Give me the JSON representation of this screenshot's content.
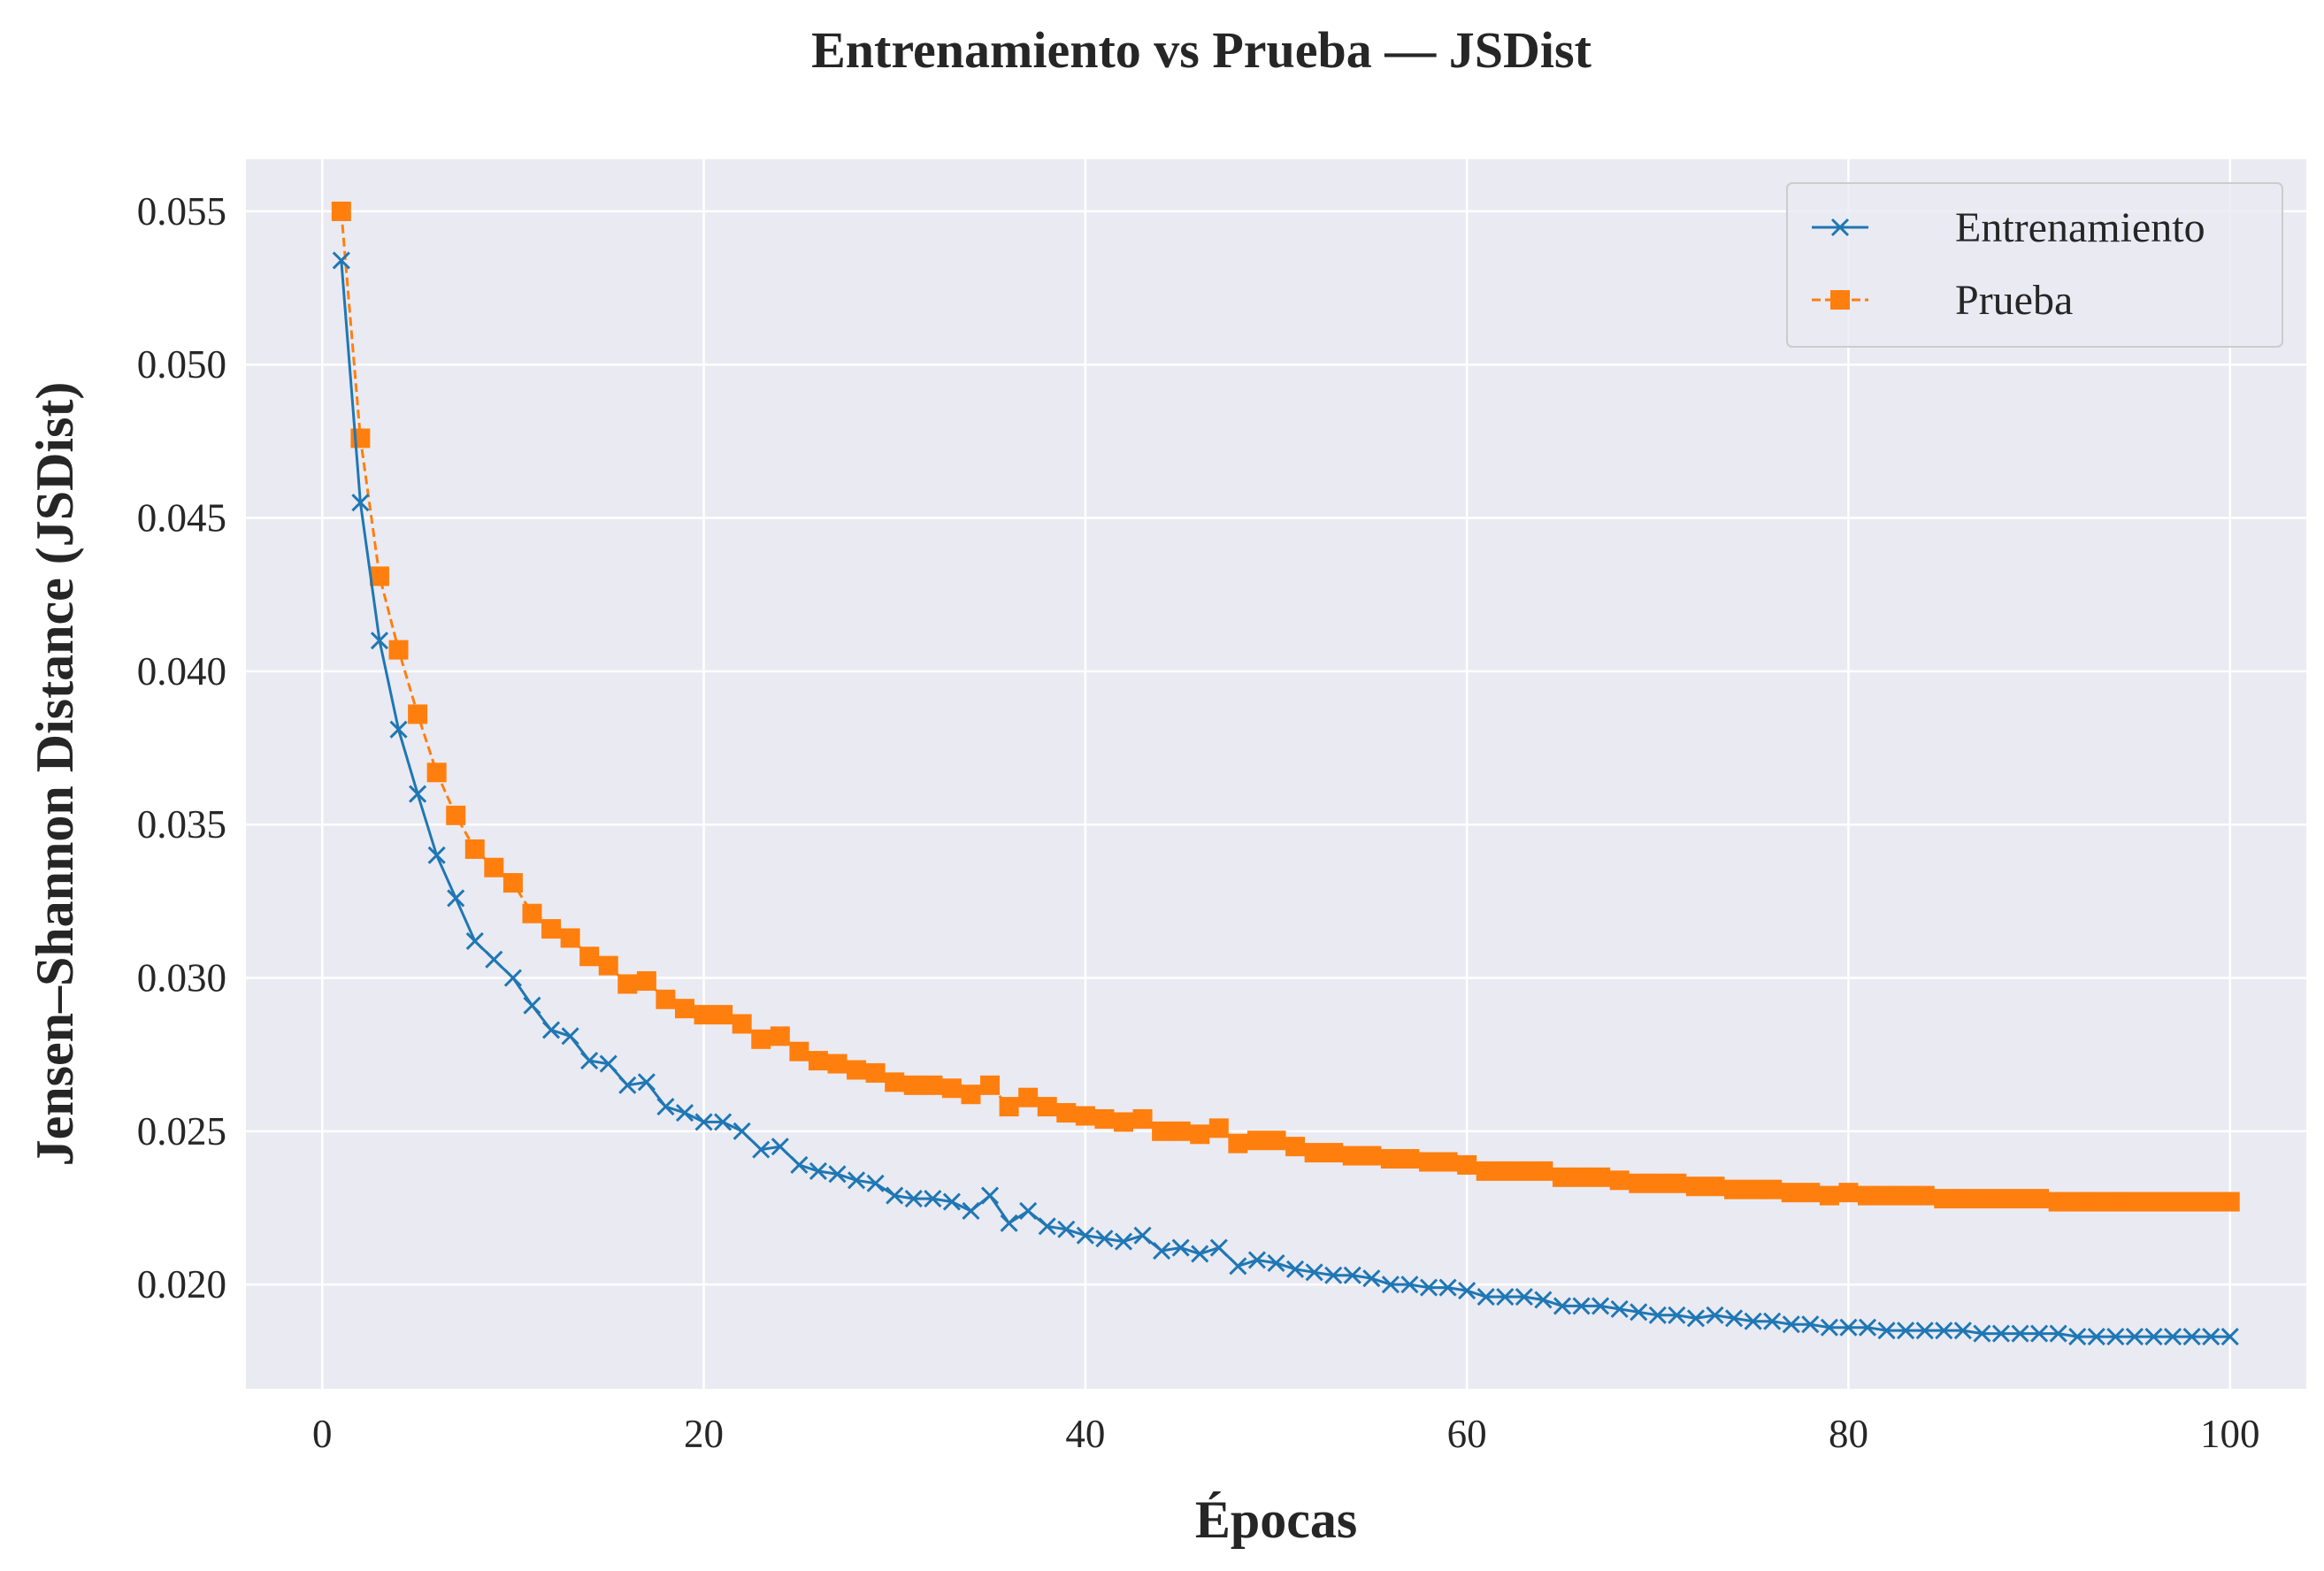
{
  "chart_data": {
    "type": "line",
    "title": "Entrenamiento vs Prueba — JSDist",
    "xlabel": "Épocas",
    "ylabel": "Jensen–Shannon Distance (JSDist)",
    "xlim": [
      -4,
      104
    ],
    "ylim": [
      0.0166,
      0.0567
    ],
    "xticks": [
      0,
      20,
      40,
      60,
      80,
      100
    ],
    "yticks": [
      0.02,
      0.025,
      0.03,
      0.035,
      0.04,
      0.045,
      0.05,
      0.055
    ],
    "xtick_labels": [
      "0",
      "20",
      "40",
      "60",
      "80",
      "100"
    ],
    "ytick_labels": [
      "0.020",
      "0.025",
      "0.030",
      "0.035",
      "0.040",
      "0.045",
      "0.050",
      "0.055"
    ],
    "grid": true,
    "legend_position": "top-right",
    "background": "#eaeaf2",
    "series": [
      {
        "name": "Entrenamiento",
        "color": "#1f77b4",
        "marker": "x",
        "linestyle": "solid",
        "values": [
          0.0534,
          0.0455,
          0.041,
          0.0381,
          0.036,
          0.034,
          0.0326,
          0.0312,
          0.0306,
          0.03,
          0.0291,
          0.0283,
          0.0281,
          0.0273,
          0.0272,
          0.0265,
          0.0266,
          0.0258,
          0.0256,
          0.0253,
          0.0253,
          0.025,
          0.0244,
          0.0245,
          0.0239,
          0.0237,
          0.0236,
          0.0234,
          0.0233,
          0.0229,
          0.0228,
          0.0228,
          0.0227,
          0.0224,
          0.0229,
          0.022,
          0.0224,
          0.0219,
          0.0218,
          0.0216,
          0.0215,
          0.0214,
          0.0216,
          0.0211,
          0.0212,
          0.021,
          0.0212,
          0.0206,
          0.0208,
          0.0207,
          0.0205,
          0.0204,
          0.0203,
          0.0203,
          0.0202,
          0.02,
          0.02,
          0.0199,
          0.0199,
          0.0198,
          0.0196,
          0.0196,
          0.0196,
          0.0195,
          0.0193,
          0.0193,
          0.0193,
          0.0192,
          0.0191,
          0.019,
          0.019,
          0.0189,
          0.019,
          0.0189,
          0.0188,
          0.0188,
          0.0187,
          0.0187,
          0.0186,
          0.0186,
          0.0186,
          0.0185,
          0.0185,
          0.0185,
          0.0185,
          0.0185,
          0.0184,
          0.0184,
          0.0184,
          0.0184,
          0.0184,
          0.0183,
          0.0183,
          0.0183,
          0.0183,
          0.0183,
          0.0183,
          0.0183,
          0.0183,
          0.0183
        ]
      },
      {
        "name": "Prueba",
        "color": "#ff7f0e",
        "marker": "s",
        "linestyle": "dashed",
        "values": [
          0.055,
          0.0476,
          0.0431,
          0.0407,
          0.0386,
          0.0367,
          0.0353,
          0.0342,
          0.0336,
          0.0331,
          0.0321,
          0.0316,
          0.0313,
          0.0307,
          0.0304,
          0.0298,
          0.0299,
          0.0293,
          0.029,
          0.0288,
          0.0288,
          0.0285,
          0.028,
          0.0281,
          0.0276,
          0.0273,
          0.0272,
          0.027,
          0.0269,
          0.0266,
          0.0265,
          0.0265,
          0.0264,
          0.0262,
          0.0265,
          0.0258,
          0.0261,
          0.0258,
          0.0256,
          0.0255,
          0.0254,
          0.0253,
          0.0254,
          0.025,
          0.025,
          0.0249,
          0.0251,
          0.0246,
          0.0247,
          0.0247,
          0.0245,
          0.0243,
          0.0243,
          0.0242,
          0.0242,
          0.0241,
          0.0241,
          0.024,
          0.024,
          0.0239,
          0.0237,
          0.0237,
          0.0237,
          0.0237,
          0.0235,
          0.0235,
          0.0235,
          0.0234,
          0.0233,
          0.0233,
          0.0233,
          0.0232,
          0.0232,
          0.0231,
          0.0231,
          0.0231,
          0.023,
          0.023,
          0.0229,
          0.023,
          0.0229,
          0.0229,
          0.0229,
          0.0229,
          0.0228,
          0.0228,
          0.0228,
          0.0228,
          0.0228,
          0.0228,
          0.0227,
          0.0227,
          0.0227,
          0.0227,
          0.0227,
          0.0227,
          0.0227,
          0.0227,
          0.0227,
          0.0227
        ]
      }
    ]
  }
}
